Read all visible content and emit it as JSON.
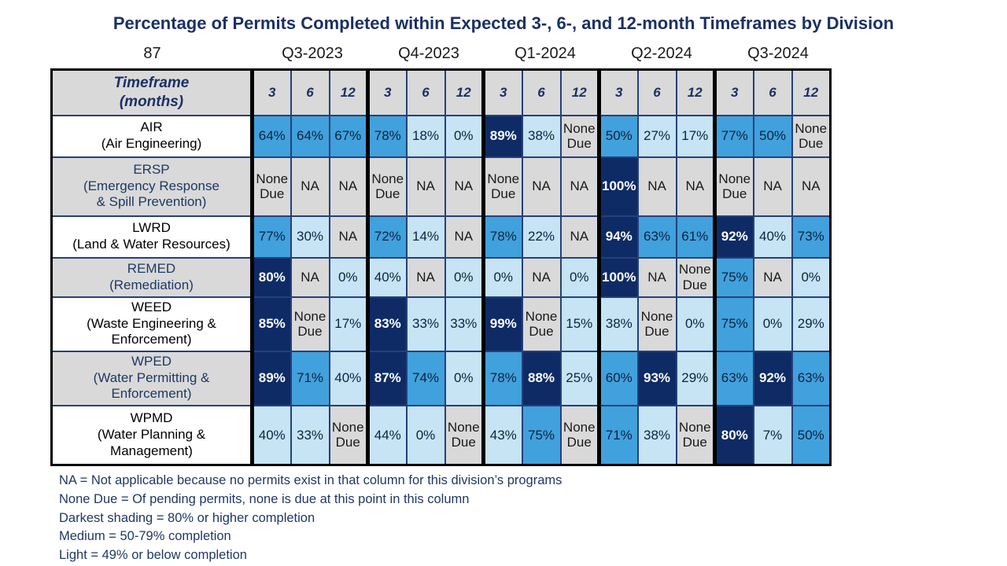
{
  "title": "Percentage of Permits Completed within Expected 3-, 6-, and 12-month Timeframes by Division",
  "page_number": "87",
  "colors": {
    "dark_shading": "#0E2B66",
    "medium_shading": "#41A1DC",
    "light_shading": "#C6E4F4",
    "na_gray": "#D9D9D9",
    "header_gray": "#D9D9D9",
    "grid_navy": "#25407A",
    "group_divider_black": "#000000",
    "title_navy": "#1B3064",
    "notes_navy": "#1F3864",
    "dark_cell_text": "#FFFFFF",
    "cell_text": "#0D2240"
  },
  "chart_data": {
    "type": "heatmap",
    "title": "Percentage of Permits Completed within Expected 3-, 6-, and 12-month Timeframes by Division",
    "quarters": [
      "Q3-2023",
      "Q4-2023",
      "Q1-2024",
      "Q2-2024",
      "Q3-2024"
    ],
    "timeframes_months": [
      "3",
      "6",
      "12"
    ],
    "header_label_lines": [
      "Timeframe",
      "(months)"
    ],
    "level_meaning": {
      "D": "80% or higher completion (darkest shading)",
      "M": "50-79% completion (medium shading)",
      "L": "49% or below completion (light shading)",
      "G": "NA or None Due (gray)"
    },
    "divisions": [
      {
        "code": "AIR",
        "name_lines": [
          "AIR",
          "(Air Engineering)"
        ],
        "label_style": "white",
        "values": [
          "64%",
          "64%",
          "67%",
          "78%",
          "18%",
          "0%",
          "89%",
          "38%",
          "None Due",
          "50%",
          "27%",
          "17%",
          "77%",
          "50%",
          "None Due"
        ],
        "levels": [
          "M",
          "M",
          "M",
          "M",
          "L",
          "L",
          "D",
          "L",
          "G",
          "M",
          "L",
          "L",
          "M",
          "M",
          "G"
        ]
      },
      {
        "code": "ERSP",
        "name_lines": [
          "ERSP",
          "(Emergency Response",
          "& Spill Prevention)"
        ],
        "label_style": "gray",
        "values": [
          "None Due",
          "NA",
          "NA",
          "None Due",
          "NA",
          "NA",
          "None Due",
          "NA",
          "NA",
          "100%",
          "NA",
          "NA",
          "None Due",
          "NA",
          "NA"
        ],
        "levels": [
          "G",
          "G",
          "G",
          "G",
          "G",
          "G",
          "G",
          "G",
          "G",
          "D",
          "G",
          "G",
          "G",
          "G",
          "G"
        ]
      },
      {
        "code": "LWRD",
        "name_lines": [
          "LWRD",
          "(Land & Water Resources)"
        ],
        "label_style": "white",
        "values": [
          "77%",
          "30%",
          "NA",
          "72%",
          "14%",
          "NA",
          "78%",
          "22%",
          "NA",
          "94%",
          "63%",
          "61%",
          "92%",
          "40%",
          "73%"
        ],
        "levels": [
          "M",
          "L",
          "G",
          "M",
          "L",
          "G",
          "M",
          "L",
          "G",
          "D",
          "M",
          "M",
          "D",
          "L",
          "M"
        ]
      },
      {
        "code": "REMED",
        "name_lines": [
          "REMED",
          "(Remediation)"
        ],
        "label_style": "gray",
        "values": [
          "80%",
          "NA",
          "0%",
          "40%",
          "NA",
          "0%",
          "0%",
          "NA",
          "0%",
          "100%",
          "NA",
          "None Due",
          "75%",
          "NA",
          "0%"
        ],
        "levels": [
          "D",
          "G",
          "L",
          "L",
          "G",
          "L",
          "L",
          "G",
          "L",
          "D",
          "G",
          "G",
          "M",
          "G",
          "L"
        ]
      },
      {
        "code": "WEED",
        "name_lines": [
          "WEED",
          "(Waste Engineering &",
          "Enforcement)"
        ],
        "label_style": "white",
        "values": [
          "85%",
          "None Due",
          "17%",
          "83%",
          "33%",
          "33%",
          "99%",
          "None Due",
          "15%",
          "38%",
          "None Due",
          "0%",
          "75%",
          "0%",
          "29%"
        ],
        "levels": [
          "D",
          "G",
          "L",
          "D",
          "L",
          "L",
          "D",
          "G",
          "L",
          "L",
          "G",
          "L",
          "M",
          "L",
          "L"
        ]
      },
      {
        "code": "WPED",
        "name_lines": [
          "WPED",
          "(Water Permitting &",
          "Enforcement)"
        ],
        "label_style": "gray",
        "values": [
          "89%",
          "71%",
          "40%",
          "87%",
          "74%",
          "0%",
          "78%",
          "88%",
          "25%",
          "60%",
          "93%",
          "29%",
          "63%",
          "92%",
          "63%"
        ],
        "levels": [
          "D",
          "M",
          "L",
          "D",
          "M",
          "L",
          "M",
          "D",
          "L",
          "M",
          "D",
          "L",
          "M",
          "D",
          "M"
        ]
      },
      {
        "code": "WPMD",
        "name_lines": [
          "WPMD",
          "(Water Planning &",
          "Management)"
        ],
        "label_style": "white",
        "values": [
          "40%",
          "33%",
          "None Due",
          "44%",
          "0%",
          "None Due",
          "43%",
          "75%",
          "None Due",
          "71%",
          "38%",
          "None Due",
          "80%",
          "7%",
          "50%"
        ],
        "levels": [
          "L",
          "L",
          "G",
          "L",
          "L",
          "G",
          "L",
          "M",
          "G",
          "M",
          "L",
          "G",
          "D",
          "L",
          "M"
        ]
      }
    ],
    "legend_notes": [
      "NA = Not applicable because no permits exist in that column for this division’s programs",
      "None Due = Of pending permits, none is due at this point in this column",
      "Darkest shading = 80% or higher completion",
      "Medium = 50-79% completion",
      "Light = 49% or below completion"
    ]
  }
}
